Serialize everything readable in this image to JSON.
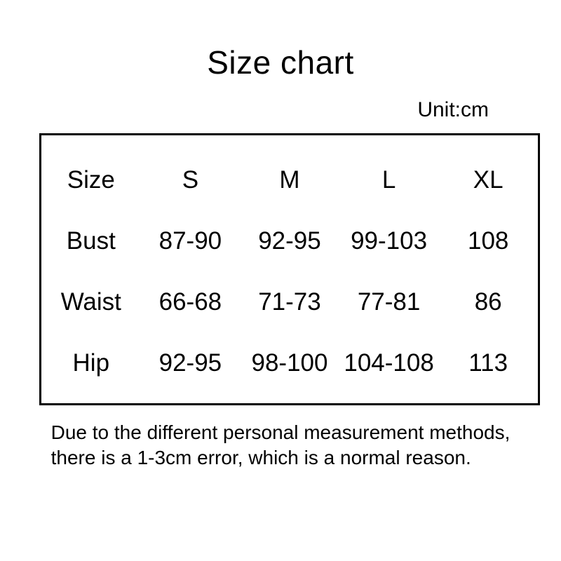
{
  "page": {
    "title": "Size chart",
    "unit_label": "Unit:cm",
    "note_line1": "Due to the different personal measurement methods,",
    "note_line2": "there is a 1-3cm error, which is a normal reason."
  },
  "chart_data": {
    "type": "table",
    "title": "Size chart",
    "unit": "cm",
    "columns": [
      "Size",
      "S",
      "M",
      "L",
      "XL"
    ],
    "rows": [
      {
        "label": "Bust",
        "values": [
          "87-90",
          "92-95",
          "99-103",
          "108"
        ]
      },
      {
        "label": "Waist",
        "values": [
          "66-68",
          "71-73",
          "77-81",
          "86"
        ]
      },
      {
        "label": "Hip",
        "values": [
          "92-95",
          "98-100",
          "104-108",
          "113"
        ]
      }
    ],
    "note": "Due to the different personal measurement methods, there is a 1-3cm error, which is a normal reason.",
    "layout": {
      "background_color": "#ffffff",
      "text_color": "#000000",
      "border_color": "#000000",
      "grid_lines": "outer-border-only",
      "unit_label_position": "top-right-above-table"
    }
  }
}
